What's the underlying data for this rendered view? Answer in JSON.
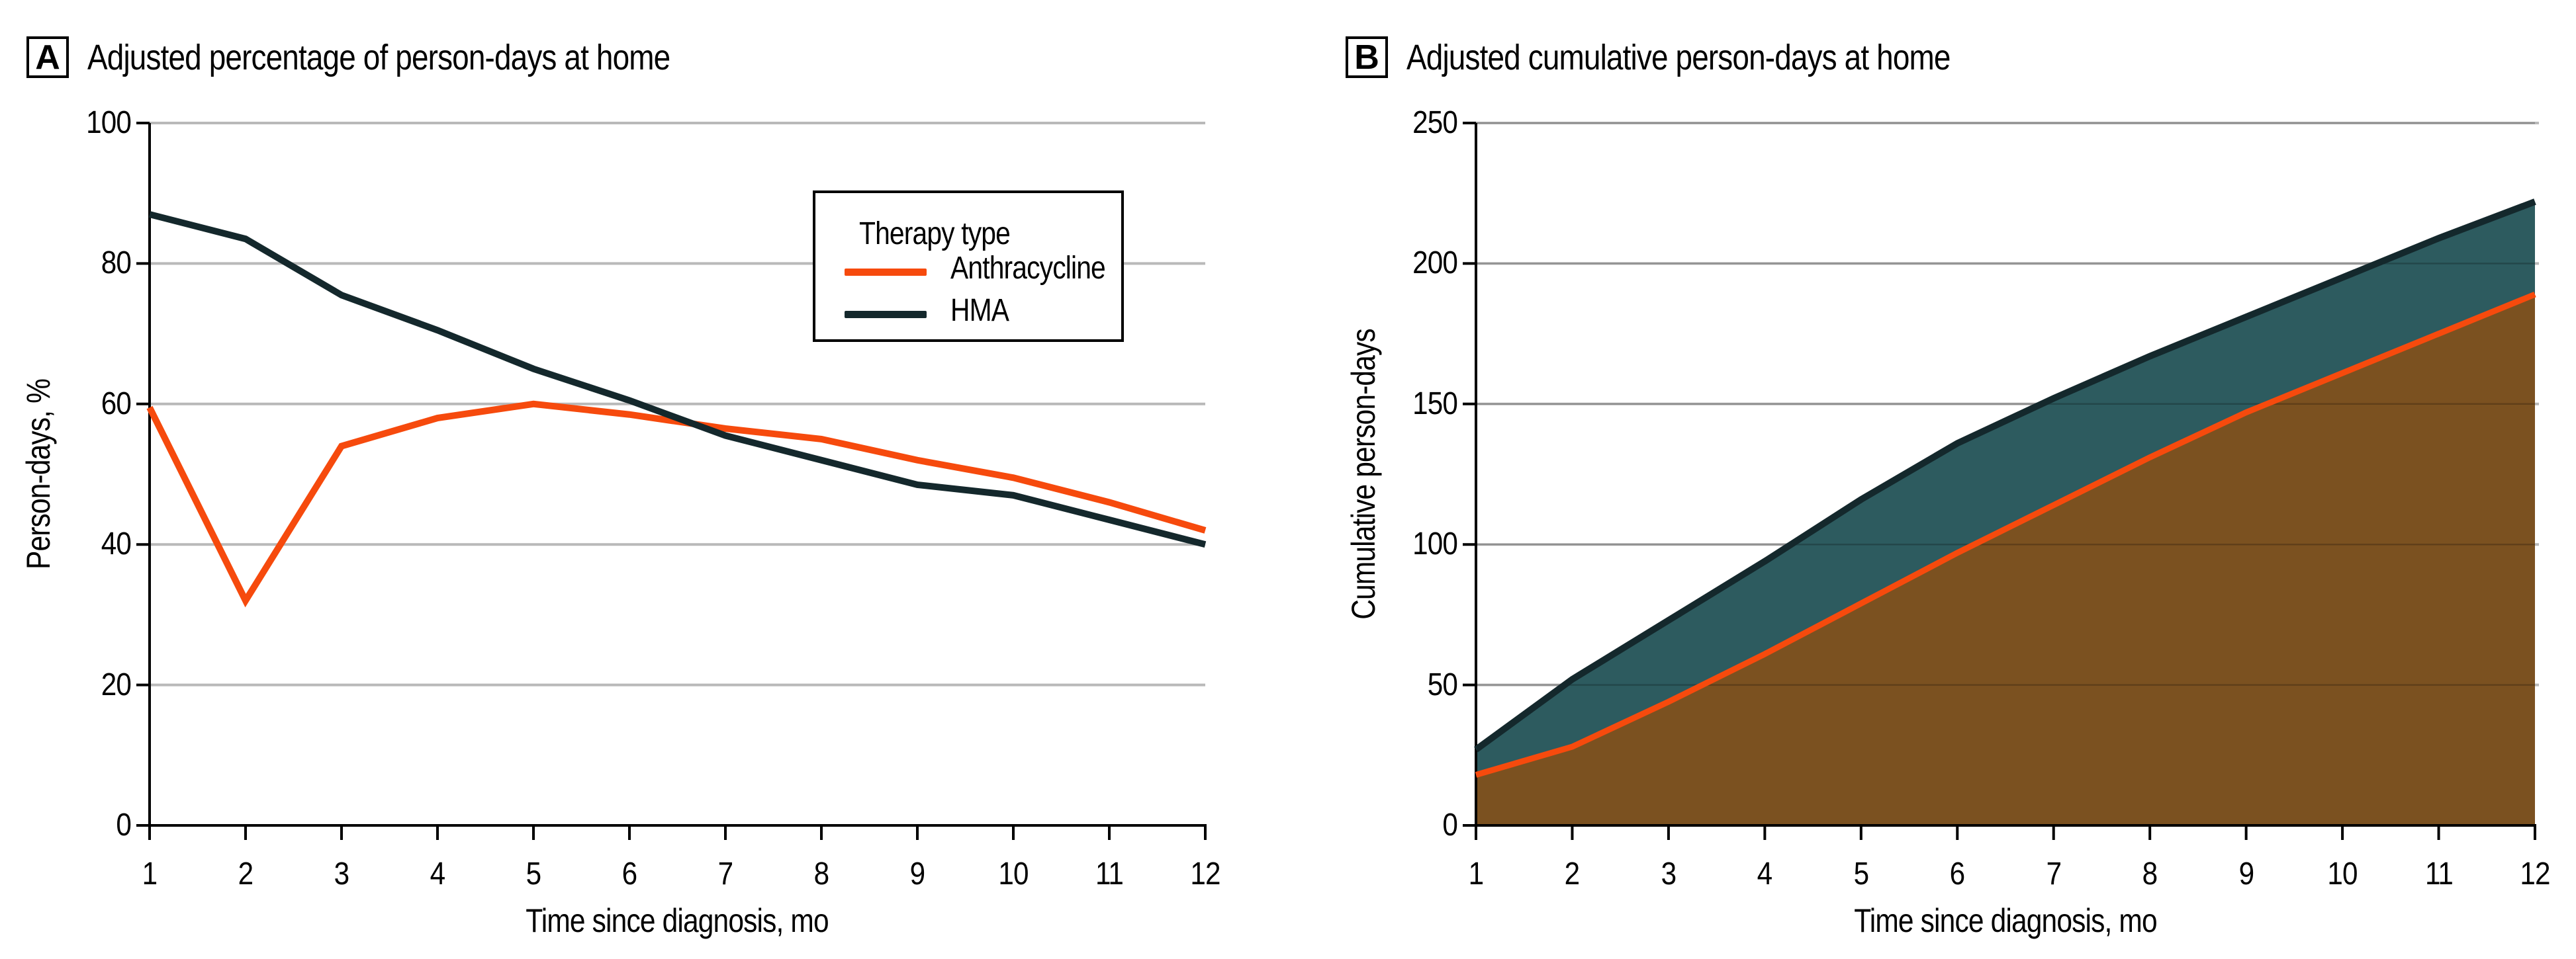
{
  "figure": {
    "background": "#ffffff",
    "grid_color": "#b9b9b9",
    "axis_color": "#000000",
    "panels": [
      {
        "label": "A",
        "title": "Adjusted percentage of person-days at home"
      },
      {
        "label": "B",
        "title": "Adjusted cumulative person-days at home"
      }
    ]
  },
  "chart_data": [
    {
      "type": "line",
      "panel": "A",
      "title": "Adjusted percentage of person-days at home",
      "xlabel": "Time since diagnosis, mo",
      "ylabel": "Person-days, %",
      "x": [
        1,
        2,
        3,
        4,
        5,
        6,
        7,
        8,
        9,
        10,
        11,
        12
      ],
      "xlim": [
        1,
        12
      ],
      "ylim": [
        0,
        100
      ],
      "yticks": [
        0,
        20,
        40,
        60,
        80,
        100
      ],
      "grid": true,
      "legend": {
        "title": "Therapy type",
        "position": "upper right"
      },
      "series": [
        {
          "name": "Anthracycline",
          "color": "#F64A0D",
          "values": [
            59.5,
            32,
            54,
            58,
            60,
            58.5,
            56.5,
            55,
            52,
            49.5,
            46,
            42
          ]
        },
        {
          "name": "HMA",
          "color": "#14282C",
          "values": [
            87,
            83.5,
            75.5,
            70.5,
            65,
            60.5,
            55.5,
            52,
            48.5,
            47,
            43.5,
            40
          ]
        }
      ]
    },
    {
      "type": "area",
      "panel": "B",
      "title": "Adjusted cumulative person-days at home",
      "xlabel": "Time since diagnosis, mo",
      "ylabel": "Cumulative person-days",
      "x": [
        1,
        2,
        3,
        4,
        5,
        6,
        7,
        8,
        9,
        10,
        11,
        12
      ],
      "xlim": [
        1,
        12
      ],
      "ylim": [
        0,
        250
      ],
      "yticks": [
        0,
        50,
        100,
        150,
        200,
        250
      ],
      "grid": true,
      "series": [
        {
          "name": "Anthracycline",
          "color": "#F64A0D",
          "fill_below_color": "#7B5120",
          "values": [
            18,
            28,
            44,
            61,
            79,
            97,
            114,
            131,
            147,
            161,
            175,
            189
          ]
        },
        {
          "name": "HMA",
          "color": "#14282C",
          "fill_between_color": "#2D5B5F",
          "values": [
            27,
            52,
            73,
            94,
            116,
            136,
            152,
            167,
            181,
            195,
            209,
            222
          ]
        }
      ]
    }
  ]
}
